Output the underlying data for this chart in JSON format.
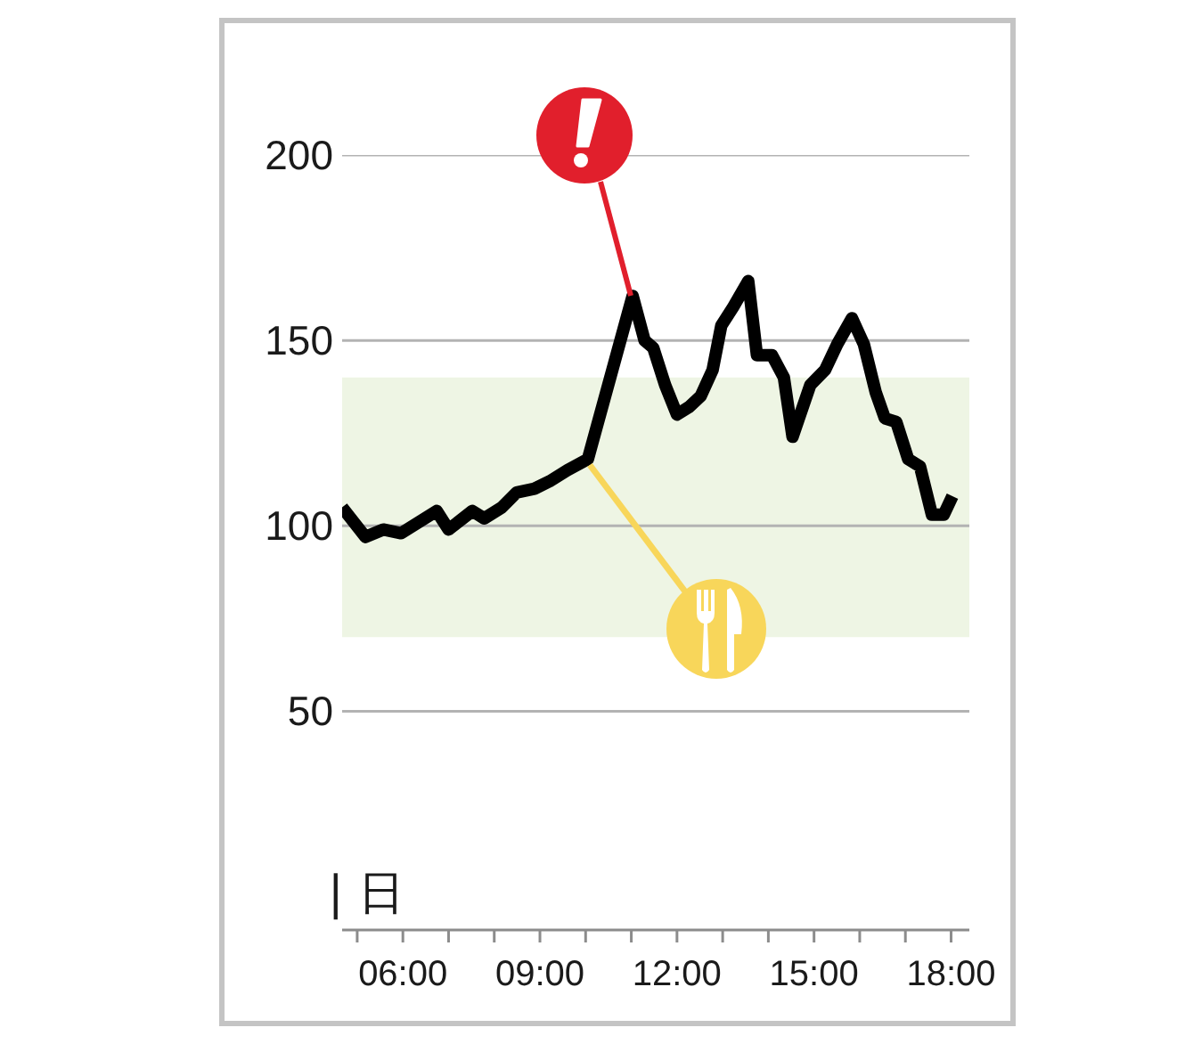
{
  "chart_data": {
    "type": "line",
    "x": [
      4.67,
      5.18,
      5.57,
      5.96,
      6.35,
      6.74,
      7.0,
      7.52,
      7.78,
      8.17,
      8.49,
      8.88,
      9.21,
      9.6,
      10.05,
      11.03,
      11.29,
      11.48,
      11.74,
      12.0,
      12.26,
      12.52,
      12.78,
      12.97,
      13.23,
      13.56,
      13.75,
      14.08,
      14.34,
      14.53,
      14.92,
      15.24,
      15.51,
      15.83,
      16.09,
      16.35,
      16.55,
      16.8,
      17.06,
      17.32,
      17.58,
      17.84,
      18.03
    ],
    "values": [
      105,
      97,
      99,
      98,
      101,
      104,
      99,
      104,
      102,
      105,
      109,
      110,
      112,
      115,
      118,
      162,
      150,
      148,
      138,
      130,
      132,
      135,
      142,
      154,
      159,
      166,
      146,
      146,
      140,
      124,
      138,
      142,
      149,
      156,
      149,
      136,
      129,
      128,
      118,
      116,
      103,
      103,
      108
    ],
    "color": "#000000",
    "line_style": "solid",
    "xlim": [
      4.67,
      18.4
    ],
    "xticks": [
      {
        "value": 5,
        "label": null
      },
      {
        "value": 6,
        "label": "06:00"
      },
      {
        "value": 7,
        "label": null
      },
      {
        "value": 8,
        "label": null
      },
      {
        "value": 9,
        "label": "09:00"
      },
      {
        "value": 10,
        "label": null
      },
      {
        "value": 11,
        "label": null
      },
      {
        "value": 12,
        "label": "12:00"
      },
      {
        "value": 13,
        "label": null
      },
      {
        "value": 14,
        "label": null
      },
      {
        "value": 15,
        "label": "15:00"
      },
      {
        "value": 16,
        "label": null
      },
      {
        "value": 17,
        "label": null
      },
      {
        "value": 18,
        "label": "18:00"
      }
    ],
    "ylim": [
      -9,
      200
    ],
    "yticks": [
      50,
      100,
      150,
      200
    ],
    "grid": "y",
    "bands": [
      {
        "axis": "y",
        "from": 70,
        "to": 140,
        "color": "#eef5e4"
      }
    ],
    "annotations": [
      "| 日"
    ]
  }
}
